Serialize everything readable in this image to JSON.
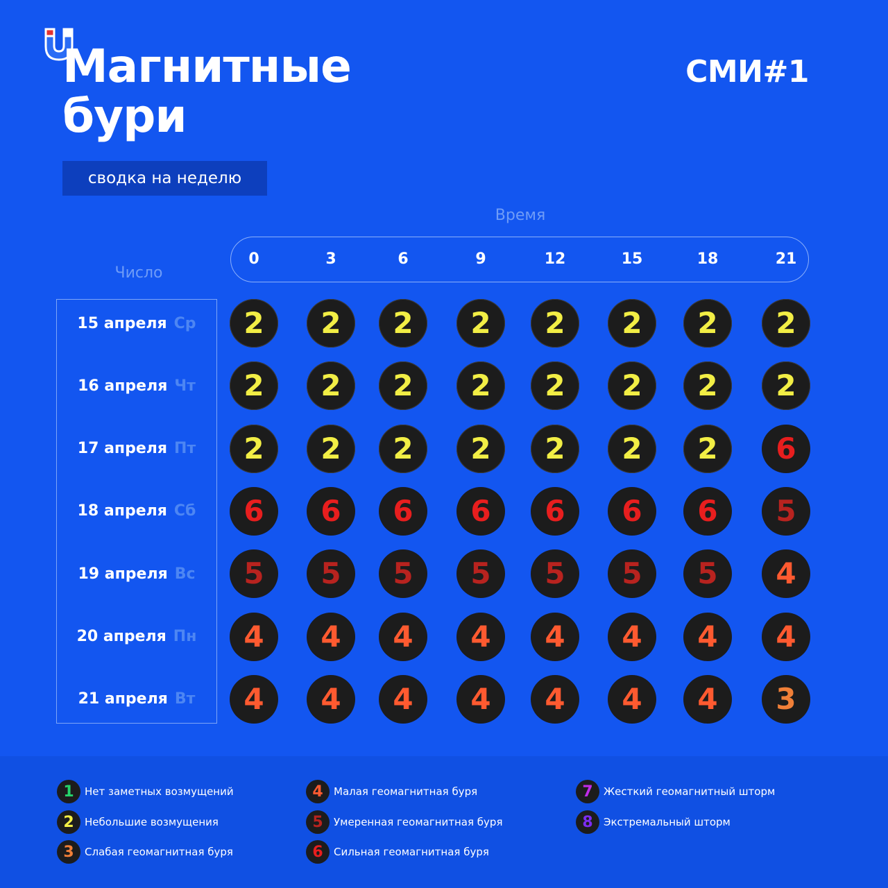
{
  "header": {
    "title_line1": "Магнитные",
    "title_line2": "бури",
    "brand": "СМИ#1",
    "subtitle": "сводка на неделю",
    "time_label": "Время",
    "day_label": "Число"
  },
  "hours": [
    "0",
    "3",
    "6",
    "9",
    "12",
    "15",
    "18",
    "21"
  ],
  "days": [
    {
      "date": "15 апреля",
      "weekday": "Ср",
      "levels": [
        2,
        2,
        2,
        2,
        2,
        2,
        2,
        2
      ]
    },
    {
      "date": "16 апреля",
      "weekday": "Чт",
      "levels": [
        2,
        2,
        2,
        2,
        2,
        2,
        2,
        2
      ]
    },
    {
      "date": "17 апреля",
      "weekday": "Пт",
      "levels": [
        2,
        2,
        2,
        2,
        2,
        2,
        2,
        6
      ]
    },
    {
      "date": "18 апреля",
      "weekday": "Сб",
      "levels": [
        6,
        6,
        6,
        6,
        6,
        6,
        6,
        5
      ]
    },
    {
      "date": "19 апреля",
      "weekday": "Вс",
      "levels": [
        5,
        5,
        5,
        5,
        5,
        5,
        5,
        4
      ]
    },
    {
      "date": "20 апреля",
      "weekday": "Пн",
      "levels": [
        4,
        4,
        4,
        4,
        4,
        4,
        4,
        4
      ]
    },
    {
      "date": "21 апреля",
      "weekday": "Вт",
      "levels": [
        4,
        4,
        4,
        4,
        4,
        4,
        4,
        3
      ]
    }
  ],
  "level_colors": {
    "1": "#25d46b",
    "2": "#f2ee45",
    "3": "#f07f38",
    "4": "#ff5a30",
    "5": "#b8231f",
    "6": "#e81e1e",
    "7": "#c02be8",
    "8": "#7c2cf0"
  },
  "legend": [
    {
      "level": "1",
      "label": "Нет заметных возмущений"
    },
    {
      "level": "2",
      "label": "Небольшие возмущения"
    },
    {
      "level": "3",
      "label": "Слабая геомагнитная буря"
    },
    {
      "level": "4",
      "label": "Малая геомагнитная буря"
    },
    {
      "level": "5",
      "label": "Умеренная геомагнитная буря"
    },
    {
      "level": "6",
      "label": "Сильная геомагнитная буря"
    },
    {
      "level": "7",
      "label": "Жесткий геомагнитный шторм"
    },
    {
      "level": "8",
      "label": "Экстремальный шторм"
    }
  ],
  "logo": {
    "icon": "magnet-icon"
  }
}
